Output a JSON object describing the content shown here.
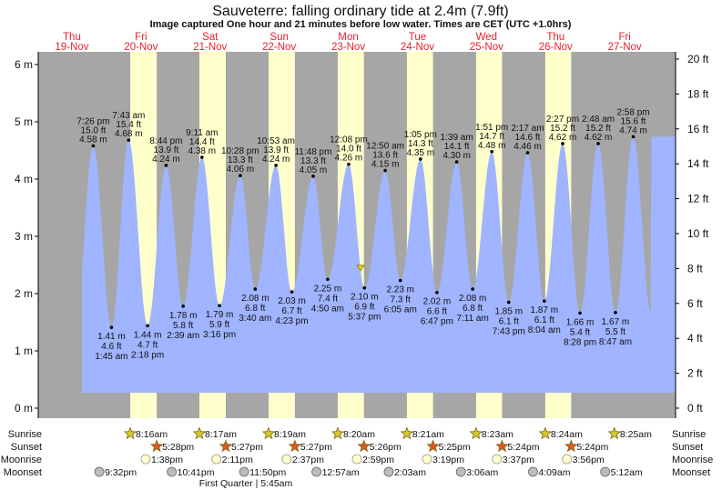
{
  "header": {
    "title": "Sauveterre: falling  ordinary tide at 2.4m (7.9ft)",
    "subtitle": "Image captured One hour and 21 minutes before low water. Times are CET (UTC +1.0hrs)"
  },
  "colors": {
    "water": "#a0b4ff",
    "night": "#a6a6a6",
    "day": "#ffffcc",
    "day_label": "#e8202a",
    "sunrise": "#d6c830",
    "sunset": "#e0562a",
    "moonrise": "#ffffcc",
    "moonset": "#bdbdb5"
  },
  "days": [
    {
      "dow": "Thu",
      "date": "19-Nov"
    },
    {
      "dow": "Fri",
      "date": "20-Nov"
    },
    {
      "dow": "Sat",
      "date": "21-Nov"
    },
    {
      "dow": "Sun",
      "date": "22-Nov"
    },
    {
      "dow": "Mon",
      "date": "23-Nov"
    },
    {
      "dow": "Tue",
      "date": "24-Nov"
    },
    {
      "dow": "Wed",
      "date": "25-Nov"
    },
    {
      "dow": "Thu",
      "date": "26-Nov"
    },
    {
      "dow": "Fri",
      "date": "27-Nov"
    }
  ],
  "chart_data": {
    "type": "area",
    "title": "Sauveterre: falling  ordinary tide at 2.4m (7.9ft)",
    "x_unit": "hours since Thu 19-Nov 00:00 CET",
    "y_left": {
      "label": "m",
      "ticks": [
        "0 m",
        "1 m",
        "2 m",
        "3 m",
        "4 m",
        "5 m",
        "6 m"
      ],
      "range": [
        0,
        6.3
      ]
    },
    "y_right": {
      "label": "ft",
      "ticks": [
        "0 ft",
        "2 ft",
        "4 ft",
        "6 ft",
        "8 ft",
        "10 ft",
        "12 ft",
        "14 ft",
        "16 ft",
        "18 ft",
        "20 ft"
      ]
    },
    "current": {
      "height_m": 2.4,
      "height_ft": 7.9,
      "hours": 112.27,
      "state": "falling"
    },
    "highs": [
      {
        "h": 19.43,
        "time": "7:26 pm",
        "ft": "15.0 ft",
        "m": "4.58 m",
        "v": 4.58
      },
      {
        "h": 31.72,
        "time": "7:43 am",
        "ft": "15.4 ft",
        "m": "4.68 m",
        "v": 4.68
      },
      {
        "h": 44.73,
        "time": "8:44 pm",
        "ft": "13.9 ft",
        "m": "4.24 m",
        "v": 4.24
      },
      {
        "h": 57.18,
        "time": "9:11 am",
        "ft": "14.4 ft",
        "m": "4.38 m",
        "v": 4.38
      },
      {
        "h": 70.47,
        "time": "10:28 pm",
        "ft": "13.3 ft",
        "m": "4.06 m",
        "v": 4.06
      },
      {
        "h": 82.88,
        "time": "10:53 am",
        "ft": "13.9 ft",
        "m": "4.24 m",
        "v": 4.24
      },
      {
        "h": 95.8,
        "time": "11:48 pm",
        "ft": "13.3 ft",
        "m": "4.05 m",
        "v": 4.05
      },
      {
        "h": 108.13,
        "time": "12:08 pm",
        "ft": "14.0 ft",
        "m": "4.26 m",
        "v": 4.26
      },
      {
        "h": 120.83,
        "time": "12:50 am",
        "ft": "13.6 ft",
        "m": "4.15 m",
        "v": 4.15
      },
      {
        "h": 133.08,
        "time": "1:05 pm",
        "ft": "14.3 ft",
        "m": "4.35 m",
        "v": 4.35
      },
      {
        "h": 145.65,
        "time": "1:39 am",
        "ft": "14.1 ft",
        "m": "4.30 m",
        "v": 4.3
      },
      {
        "h": 157.85,
        "time": "1:51 pm",
        "ft": "14.7 ft",
        "m": "4.48 m",
        "v": 4.48
      },
      {
        "h": 170.28,
        "time": "2:17 am",
        "ft": "14.6 ft",
        "m": "4.46 m",
        "v": 4.46
      },
      {
        "h": 182.45,
        "time": "2:27 pm",
        "ft": "15.2 ft",
        "m": "4.62 m",
        "v": 4.62
      },
      {
        "h": 194.8,
        "time": "2:48 am",
        "ft": "15.2 ft",
        "m": "4.62 m",
        "v": 4.62
      },
      {
        "h": 206.97,
        "time": "2:58 pm",
        "ft": "15.6 ft",
        "m": "4.74 m",
        "v": 4.74
      }
    ],
    "lows": [
      {
        "h": 25.75,
        "time": "1:45 am",
        "ft": "4.6 ft",
        "m": "1.41 m",
        "v": 1.41
      },
      {
        "h": 38.3,
        "time": "2:18 pm",
        "ft": "4.7 ft",
        "m": "1.44 m",
        "v": 1.44
      },
      {
        "h": 50.65,
        "time": "2:39 am",
        "ft": "5.8 ft",
        "m": "1.78 m",
        "v": 1.78
      },
      {
        "h": 63.27,
        "time": "3:16 pm",
        "ft": "5.9 ft",
        "m": "1.79 m",
        "v": 1.79
      },
      {
        "h": 75.67,
        "time": "3:40 am",
        "ft": "6.8 ft",
        "m": "2.08 m",
        "v": 2.08
      },
      {
        "h": 88.38,
        "time": "4:23 pm",
        "ft": "6.7 ft",
        "m": "2.03 m",
        "v": 2.03
      },
      {
        "h": 100.83,
        "time": "4:50 am",
        "ft": "7.4 ft",
        "m": "2.25 m",
        "v": 2.25
      },
      {
        "h": 113.62,
        "time": "5:37 pm",
        "ft": "6.9 ft",
        "m": "2.10 m",
        "v": 2.1
      },
      {
        "h": 126.08,
        "time": "6:05 am",
        "ft": "7.3 ft",
        "m": "2.23 m",
        "v": 2.23
      },
      {
        "h": 138.78,
        "time": "6:47 pm",
        "ft": "6.6 ft",
        "m": "2.02 m",
        "v": 2.02
      },
      {
        "h": 151.18,
        "time": "7:11 am",
        "ft": "6.8 ft",
        "m": "2.08 m",
        "v": 2.08
      },
      {
        "h": 163.72,
        "time": "7:43 pm",
        "ft": "6.1 ft",
        "m": "1.85 m",
        "v": 1.85
      },
      {
        "h": 176.07,
        "time": "8:04 am",
        "ft": "6.1 ft",
        "m": "1.87 m",
        "v": 1.87
      },
      {
        "h": 188.47,
        "time": "8:28 pm",
        "ft": "5.4 ft",
        "m": "1.66 m",
        "v": 1.66
      },
      {
        "h": 200.78,
        "time": "8:47 am",
        "ft": "5.5 ft",
        "m": "1.67 m",
        "v": 1.67
      }
    ]
  },
  "almanac": {
    "labels": {
      "sunrise": "Sunrise",
      "sunset": "Sunset",
      "moonrise": "Moonrise",
      "moonset": "Moonset"
    },
    "sunrise": [
      {
        "h": 32.27,
        "t": "8:16am"
      },
      {
        "h": 56.28,
        "t": "8:17am"
      },
      {
        "h": 80.32,
        "t": "8:19am"
      },
      {
        "h": 104.33,
        "t": "8:20am"
      },
      {
        "h": 128.35,
        "t": "8:21am"
      },
      {
        "h": 152.38,
        "t": "8:23am"
      },
      {
        "h": 176.4,
        "t": "8:24am"
      },
      {
        "h": 200.42,
        "t": "8:25am"
      }
    ],
    "sunset": [
      {
        "h": 41.47,
        "t": "5:28pm"
      },
      {
        "h": 65.45,
        "t": "5:27pm"
      },
      {
        "h": 89.45,
        "t": "5:27pm"
      },
      {
        "h": 113.43,
        "t": "5:26pm"
      },
      {
        "h": 137.42,
        "t": "5:25pm"
      },
      {
        "h": 161.4,
        "t": "5:24pm"
      },
      {
        "h": 185.4,
        "t": "5:24pm"
      }
    ],
    "moonrise": [
      {
        "h": 37.63,
        "t": "1:38pm"
      },
      {
        "h": 62.18,
        "t": "2:11pm"
      },
      {
        "h": 86.62,
        "t": "2:37pm"
      },
      {
        "h": 110.98,
        "t": "2:59pm"
      },
      {
        "h": 135.32,
        "t": "3:19pm"
      },
      {
        "h": 159.62,
        "t": "3:37pm"
      },
      {
        "h": 183.93,
        "t": "3:56pm"
      }
    ],
    "moonset": [
      {
        "h": 21.53,
        "t": "9:32pm"
      },
      {
        "h": 46.68,
        "t": "10:41pm"
      },
      {
        "h": 71.83,
        "t": "11:50pm"
      },
      {
        "h": 96.95,
        "t": "12:57am"
      },
      {
        "h": 122.05,
        "t": "2:03am"
      },
      {
        "h": 147.1,
        "t": "3:06am"
      },
      {
        "h": 172.15,
        "t": "4:09am"
      },
      {
        "h": 197.2,
        "t": "5:12am"
      }
    ],
    "phase": "First Quarter | 5:45am"
  }
}
